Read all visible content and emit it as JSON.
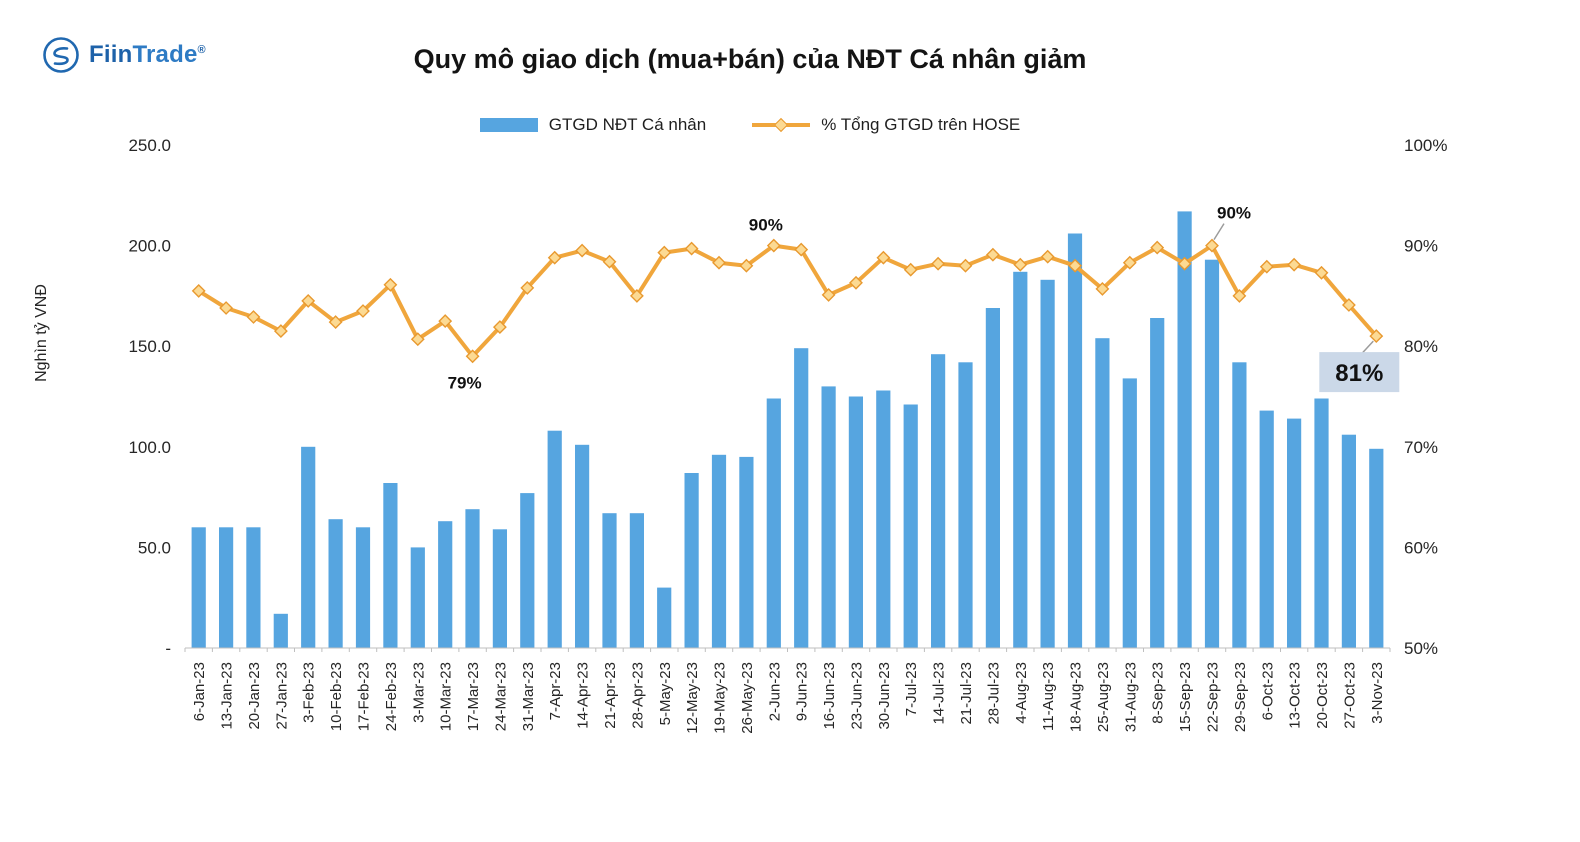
{
  "logo": {
    "part1": "Fiin",
    "part2": "Trade",
    "reg": "®"
  },
  "chart_data": {
    "type": "combo",
    "title": "Quy mô giao dịch (mua+bán) của NĐT Cá nhân giảm",
    "legend_position": "top",
    "gridlines": false,
    "categories": [
      "6-Jan-23",
      "13-Jan-23",
      "20-Jan-23",
      "27-Jan-23",
      "3-Feb-23",
      "10-Feb-23",
      "17-Feb-23",
      "24-Feb-23",
      "3-Mar-23",
      "10-Mar-23",
      "17-Mar-23",
      "24-Mar-23",
      "31-Mar-23",
      "7-Apr-23",
      "14-Apr-23",
      "21-Apr-23",
      "28-Apr-23",
      "5-May-23",
      "12-May-23",
      "19-May-23",
      "26-May-23",
      "2-Jun-23",
      "9-Jun-23",
      "16-Jun-23",
      "23-Jun-23",
      "30-Jun-23",
      "7-Jul-23",
      "14-Jul-23",
      "21-Jul-23",
      "28-Jul-23",
      "4-Aug-23",
      "11-Aug-23",
      "18-Aug-23",
      "25-Aug-23",
      "31-Aug-23",
      "8-Sep-23",
      "15-Sep-23",
      "22-Sep-23",
      "29-Sep-23",
      "6-Oct-23",
      "13-Oct-23",
      "20-Oct-23",
      "27-Oct-23",
      "3-Nov-23"
    ],
    "series": [
      {
        "name": "GTGD NĐT Cá nhân",
        "type": "bar",
        "axis": "left",
        "color": "#56A5E0",
        "values": [
          60,
          60,
          60,
          17,
          100,
          64,
          60,
          82,
          50,
          63,
          69,
          59,
          77,
          108,
          101,
          67,
          67,
          30,
          87,
          96,
          95,
          124,
          149,
          130,
          125,
          128,
          121,
          146,
          142,
          169,
          187,
          183,
          206,
          154,
          134,
          164,
          217,
          193,
          142,
          118,
          114,
          124,
          106,
          99
        ]
      },
      {
        "name": "% Tổng GTGD trên HOSE",
        "type": "line",
        "axis": "right",
        "color": "#F0A63C",
        "marker": "diamond",
        "marker_fill": "#FCDA93",
        "marker_stroke": "#E8992F",
        "values": [
          85.5,
          83.8,
          82.9,
          81.5,
          84.5,
          82.4,
          83.5,
          86.1,
          80.7,
          82.5,
          79,
          81.9,
          85.8,
          88.8,
          89.5,
          88.4,
          85,
          89.3,
          89.7,
          88.3,
          88,
          90,
          89.6,
          85.1,
          86.3,
          88.8,
          87.6,
          88.2,
          88,
          89.1,
          88.1,
          88.9,
          88,
          85.7,
          88.3,
          89.8,
          88.2,
          90,
          85,
          87.9,
          88.1,
          87.3,
          84.1,
          81
        ]
      }
    ],
    "y_left": {
      "label": "Nghìn tỷ VNĐ",
      "range": [
        0,
        250
      ],
      "ticks": [
        {
          "value": 0,
          "label": "-"
        },
        {
          "value": 50,
          "label": "50.0"
        },
        {
          "value": 100,
          "label": "100.0"
        },
        {
          "value": 150,
          "label": "150.0"
        },
        {
          "value": 200,
          "label": "200.0"
        },
        {
          "value": 250,
          "label": "250.0"
        }
      ]
    },
    "y_right": {
      "label": "",
      "range": [
        50,
        100
      ],
      "ticks": [
        {
          "value": 50,
          "label": "50%"
        },
        {
          "value": 60,
          "label": "60%"
        },
        {
          "value": 70,
          "label": "70%"
        },
        {
          "value": 80,
          "label": "80%"
        },
        {
          "value": 90,
          "label": "90%"
        },
        {
          "value": 100,
          "label": "100%"
        }
      ]
    },
    "annotations": [
      {
        "text": "79%",
        "category": "17-Mar-23",
        "index": 10,
        "placement": "below"
      },
      {
        "text": "90%",
        "category": "2-Jun-23",
        "index": 21,
        "placement": "above"
      },
      {
        "text": "90%",
        "category": "22-Sep-23",
        "index": 37,
        "placement": "callout"
      },
      {
        "text": "81%",
        "category": "3-Nov-23",
        "index": 43,
        "placement": "boxed",
        "box_color": "#CBD8E8"
      }
    ]
  }
}
